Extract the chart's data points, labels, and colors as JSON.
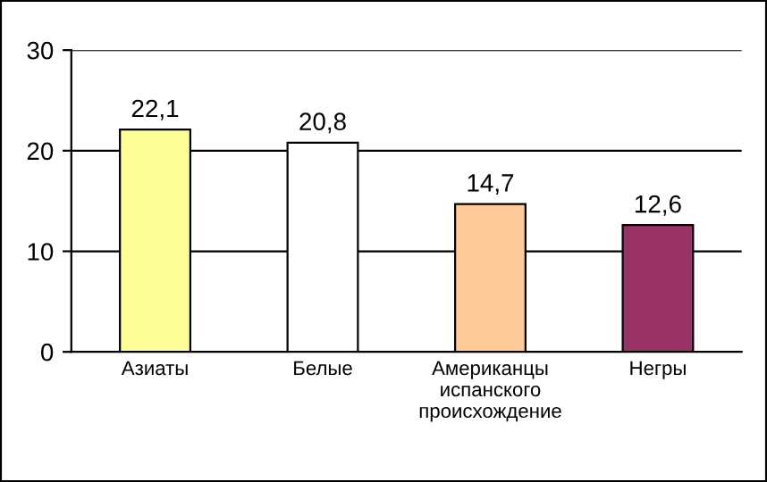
{
  "chart_data": {
    "type": "bar",
    "categories": [
      "Азиаты",
      "Белые",
      "Американцы\nиспанского\nпроисхождение",
      "Негры"
    ],
    "values": [
      22.1,
      20.8,
      14.7,
      12.6
    ],
    "colors": [
      "#ffff99",
      "#ffffff",
      "#ffcc99",
      "#993366"
    ],
    "value_labels": [
      "22,1",
      "20,8",
      "14,7",
      "12,6"
    ],
    "ylim": [
      0,
      30
    ],
    "yticks": [
      0,
      10,
      20,
      30
    ],
    "grid": "y",
    "legend": false
  }
}
